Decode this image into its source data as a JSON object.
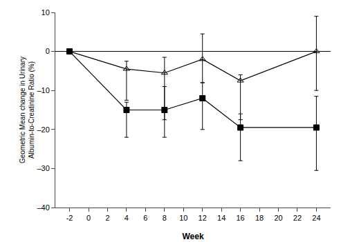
{
  "chart_data": {
    "type": "line",
    "xlabel": "Week",
    "ylabel": "Geometric Mean change in Urinary\nAlbumin-to-Creatinine Ratio (%)",
    "series": [
      {
        "x": [
          -2,
          4,
          8,
          12,
          16,
          24
        ],
        "values": [
          0,
          -15,
          -15,
          -12,
          -19.5,
          -19.5
        ],
        "yerr_low": [
          0,
          7,
          7,
          8,
          8.5,
          11
        ],
        "yerr_high": [
          0,
          2,
          6,
          4,
          3.5,
          8
        ],
        "color": "#000000",
        "marker": "square",
        "line_style": "solid"
      },
      {
        "x": [
          -2,
          4,
          8,
          12,
          16,
          24
        ],
        "values": [
          0,
          -4.5,
          -5.5,
          -2,
          -7.5,
          0
        ],
        "yerr_low": [
          0,
          8,
          12,
          6,
          10,
          10
        ],
        "yerr_high": [
          0,
          2,
          4,
          6.5,
          1.5,
          9
        ],
        "color": "#000000",
        "marker": "triangle-up-open",
        "line_style": "solid"
      }
    ],
    "xlim": [
      -3.5,
      25.5
    ],
    "ylim": [
      -40,
      10
    ],
    "xticks": [
      -2,
      0,
      2,
      4,
      6,
      8,
      10,
      12,
      14,
      16,
      18,
      20,
      22,
      24
    ],
    "yticks": [
      {
        "value": -40,
        "label": "–40"
      },
      {
        "value": -30,
        "label": "–30"
      },
      {
        "value": -20,
        "label": "–20"
      },
      {
        "value": -10,
        "label": "–10"
      },
      0,
      10
    ],
    "grid": false
  }
}
